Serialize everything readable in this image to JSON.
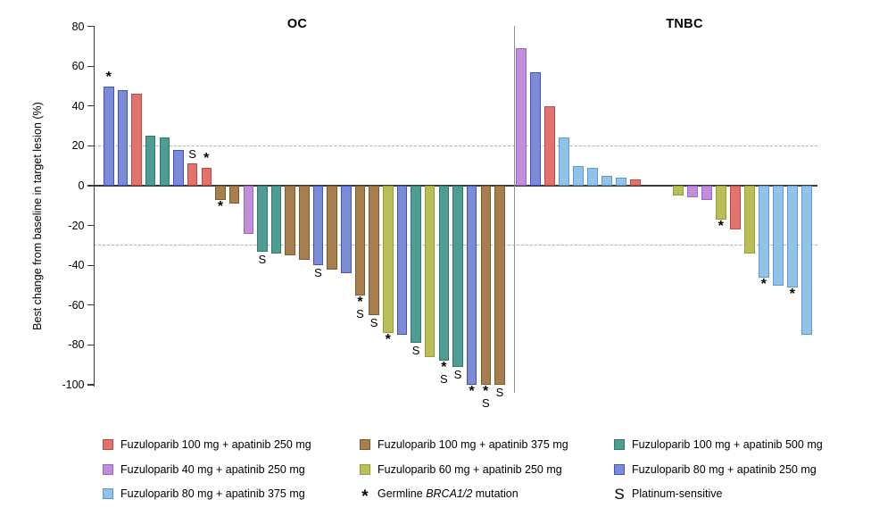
{
  "chart_data": {
    "type": "bar",
    "subtype": "waterfall",
    "title": "",
    "ylabel": "Best change from baseline in target lesion (%)",
    "ylim": [
      -100,
      80
    ],
    "yticks": [
      80,
      60,
      40,
      20,
      0,
      -20,
      -40,
      -60,
      -80,
      -100
    ],
    "reference_lines": {
      "upper": 20,
      "lower": -30
    },
    "grid": "off",
    "legend_position": "bottom",
    "series": [
      {
        "id": "red",
        "name": "Fuzuloparib 100 mg + apatinib 250 mg",
        "fill": "#E0746C",
        "border": "#BC4A40"
      },
      {
        "id": "brown",
        "name": "Fuzuloparib 100 mg + apatinib 375 mg",
        "fill": "#A87E4F",
        "border": "#7D5B31"
      },
      {
        "id": "teal",
        "name": "Fuzuloparib 100 mg + apatinib 500 mg",
        "fill": "#4F9D92",
        "border": "#2E7A6E"
      },
      {
        "id": "purple",
        "name": "Fuzuloparib 40 mg + apatinib 250 mg",
        "fill": "#C18FD7",
        "border": "#9E61C6"
      },
      {
        "id": "yellowgreen",
        "name": "Fuzuloparib 60 mg + apatinib 250 mg",
        "fill": "#B9BE5B",
        "border": "#949F2F"
      },
      {
        "id": "blue",
        "name": "Fuzuloparib 80 mg + apatinib 250 mg",
        "fill": "#7B8BD4",
        "border": "#4050C8"
      },
      {
        "id": "lightblue",
        "name": "Fuzuloparib 80 mg + apatinib 375 mg",
        "fill": "#93C2E5",
        "border": "#5B9BD5"
      }
    ],
    "markers": [
      {
        "symbol": "*",
        "label_pre": "Germline ",
        "label_italic": "BRCA1/2",
        "label_post": " mutation"
      },
      {
        "symbol": "S",
        "label": "Platinum-sensitive"
      }
    ],
    "groups": [
      {
        "name": "OC",
        "bars": [
          {
            "value": 50,
            "arm": "blue",
            "star": true
          },
          {
            "value": 48,
            "arm": "blue"
          },
          {
            "value": 46,
            "arm": "red"
          },
          {
            "value": 25,
            "arm": "teal"
          },
          {
            "value": 24,
            "arm": "teal"
          },
          {
            "value": 18,
            "arm": "blue"
          },
          {
            "value": 11,
            "arm": "red",
            "sensitive": true
          },
          {
            "value": 9,
            "arm": "red",
            "star": true
          },
          {
            "value": -7,
            "arm": "brown",
            "star": true
          },
          {
            "value": -9,
            "arm": "brown"
          },
          {
            "value": -24,
            "arm": "purple"
          },
          {
            "value": -33,
            "arm": "teal",
            "sensitive": true
          },
          {
            "value": -34,
            "arm": "teal"
          },
          {
            "value": -35,
            "arm": "brown"
          },
          {
            "value": -37,
            "arm": "brown"
          },
          {
            "value": -40,
            "arm": "blue",
            "sensitive": true
          },
          {
            "value": -42,
            "arm": "brown"
          },
          {
            "value": -44,
            "arm": "blue"
          },
          {
            "value": -55,
            "arm": "brown",
            "star": true,
            "sensitive": true
          },
          {
            "value": -65,
            "arm": "brown",
            "sensitive": true
          },
          {
            "value": -74,
            "arm": "yellowgreen",
            "star": true
          },
          {
            "value": -75,
            "arm": "blue"
          },
          {
            "value": -79,
            "arm": "teal",
            "sensitive": true
          },
          {
            "value": -86,
            "arm": "yellowgreen"
          },
          {
            "value": -88,
            "arm": "teal",
            "star": true,
            "sensitive": true
          },
          {
            "value": -91,
            "arm": "teal",
            "sensitive": true
          },
          {
            "value": -100,
            "arm": "blue",
            "star": true
          },
          {
            "value": -100,
            "arm": "brown",
            "star": true,
            "sensitive": true
          },
          {
            "value": -100,
            "arm": "brown",
            "sensitive": true
          }
        ]
      },
      {
        "name": "TNBC",
        "gap": {
          "after_bar": 8,
          "slots": 2
        },
        "bars": [
          {
            "value": 69,
            "arm": "purple"
          },
          {
            "value": 57,
            "arm": "blue"
          },
          {
            "value": 40,
            "arm": "red"
          },
          {
            "value": 24,
            "arm": "lightblue"
          },
          {
            "value": 10,
            "arm": "lightblue"
          },
          {
            "value": 9,
            "arm": "lightblue"
          },
          {
            "value": 5,
            "arm": "lightblue"
          },
          {
            "value": 4,
            "arm": "lightblue"
          },
          {
            "value": 3,
            "arm": "red"
          },
          {
            "value": -5,
            "arm": "yellowgreen"
          },
          {
            "value": -6,
            "arm": "purple"
          },
          {
            "value": -7,
            "arm": "purple"
          },
          {
            "value": -17,
            "arm": "yellowgreen",
            "star": true
          },
          {
            "value": -22,
            "arm": "red"
          },
          {
            "value": -34,
            "arm": "yellowgreen"
          },
          {
            "value": -46,
            "arm": "lightblue",
            "star": true
          },
          {
            "value": -50,
            "arm": "lightblue"
          },
          {
            "value": -51,
            "arm": "lightblue",
            "star": true
          },
          {
            "value": -75,
            "arm": "lightblue"
          }
        ]
      }
    ]
  }
}
